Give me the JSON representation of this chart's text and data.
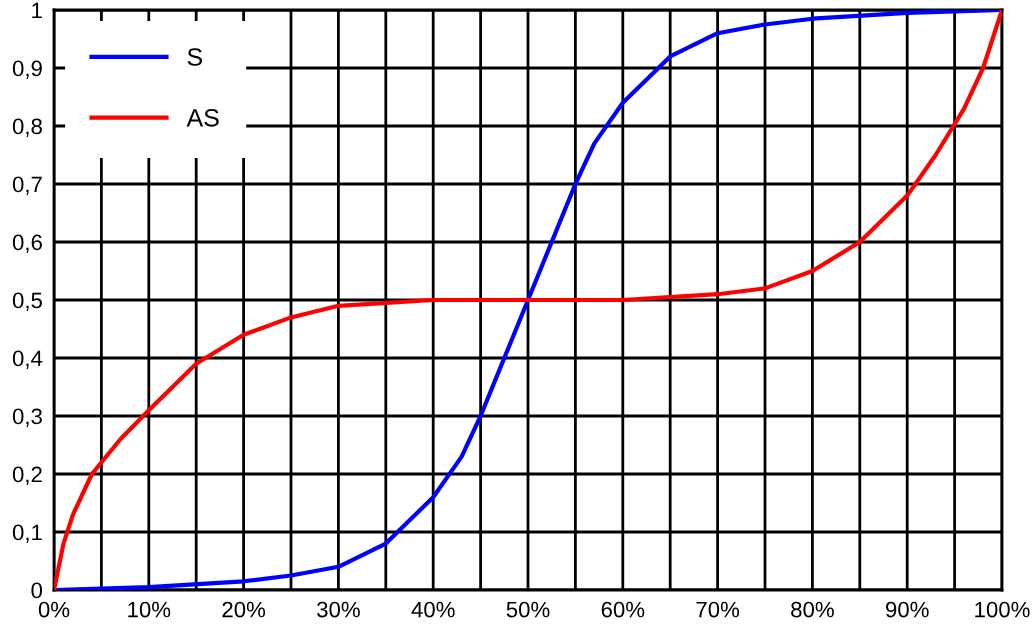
{
  "chart_data": {
    "type": "line",
    "xlim": [
      0,
      100
    ],
    "ylim": [
      0,
      1
    ],
    "xticks": [
      {
        "value": 0,
        "label": "0%"
      },
      {
        "value": 5,
        "label": null
      },
      {
        "value": 10,
        "label": "10%"
      },
      {
        "value": 15,
        "label": null
      },
      {
        "value": 20,
        "label": "20%"
      },
      {
        "value": 25,
        "label": null
      },
      {
        "value": 30,
        "label": "30%"
      },
      {
        "value": 35,
        "label": null
      },
      {
        "value": 40,
        "label": "40%"
      },
      {
        "value": 45,
        "label": null
      },
      {
        "value": 50,
        "label": "50%"
      },
      {
        "value": 55,
        "label": null
      },
      {
        "value": 60,
        "label": "60%"
      },
      {
        "value": 65,
        "label": null
      },
      {
        "value": 70,
        "label": "70%"
      },
      {
        "value": 75,
        "label": null
      },
      {
        "value": 80,
        "label": "80%"
      },
      {
        "value": 85,
        "label": null
      },
      {
        "value": 90,
        "label": "90%"
      },
      {
        "value": 95,
        "label": null
      },
      {
        "value": 100,
        "label": "100%"
      }
    ],
    "yticks": [
      0,
      {
        "value": 0.1,
        "label": "0,1"
      },
      {
        "value": 0.2,
        "label": "0,2"
      },
      {
        "value": 0.3,
        "label": "0,3"
      },
      {
        "value": 0.4,
        "label": "0,4"
      },
      {
        "value": 0.5,
        "label": "0,5"
      },
      {
        "value": 0.6,
        "label": "0,6"
      },
      {
        "value": 0.7,
        "label": "0,7"
      },
      {
        "value": 0.8,
        "label": "0,8"
      },
      {
        "value": 0.9,
        "label": "0,9"
      },
      1
    ],
    "grid": true,
    "legend": "top left",
    "marker": "none",
    "line_style": "solid",
    "series": [
      {
        "name": "S",
        "color": "#0000ff",
        "x": [
          0,
          10,
          20,
          25,
          30,
          35,
          40,
          43,
          45,
          47,
          50,
          53,
          55,
          57,
          60,
          65,
          70,
          75,
          80,
          90,
          100
        ],
        "values": [
          0,
          0.005,
          0.015,
          0.025,
          0.04,
          0.08,
          0.16,
          0.23,
          0.3,
          0.38,
          0.5,
          0.62,
          0.7,
          0.77,
          0.84,
          0.92,
          0.96,
          0.975,
          0.985,
          0.995,
          1
        ]
      },
      {
        "name": "AS",
        "color": "#ff0000",
        "x": [
          0,
          1,
          2,
          4,
          7,
          10,
          15,
          20,
          25,
          30,
          40,
          50,
          60,
          70,
          75,
          80,
          85,
          90,
          93,
          96,
          98,
          99,
          100
        ],
        "values": [
          0,
          0.08,
          0.13,
          0.2,
          0.26,
          0.31,
          0.39,
          0.44,
          0.47,
          0.49,
          0.5,
          0.5,
          0.5,
          0.51,
          0.52,
          0.55,
          0.6,
          0.68,
          0.75,
          0.83,
          0.9,
          0.95,
          1
        ]
      }
    ]
  }
}
